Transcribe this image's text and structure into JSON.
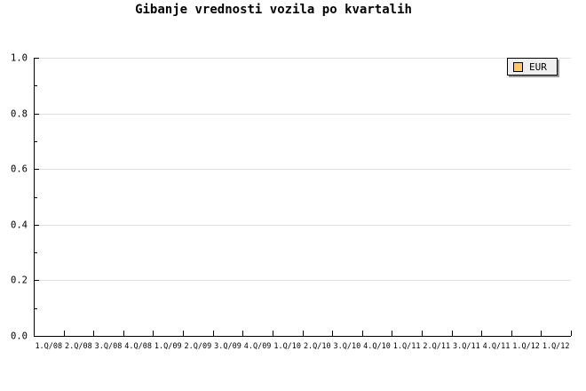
{
  "chart_data": {
    "type": "line",
    "title": "Gibanje vrednosti vozila po kvartalih",
    "categories": [
      "1.Q/08",
      "2.Q/08",
      "3.Q/08",
      "4.Q/08",
      "1.Q/09",
      "2.Q/09",
      "3.Q/09",
      "4.Q/09",
      "1.Q/10",
      "2.Q/10",
      "3.Q/10",
      "4.Q/10",
      "1.Q/11",
      "2.Q/11",
      "3.Q/11",
      "4.Q/11",
      "1.Q/12",
      "1.Q/12"
    ],
    "series": [
      {
        "name": "EUR",
        "color": "#FCC96A",
        "values": []
      }
    ],
    "xlabel": "",
    "ylabel": "",
    "ylim": [
      0.0,
      1.0
    ],
    "y_major_step": 0.2,
    "y_minor_step": 0.1,
    "y_tick_labels": [
      "0.0",
      "0.2",
      "0.4",
      "0.6",
      "0.8",
      "1.0"
    ],
    "grid": "horizontal major gridlines only",
    "legend_position": "top-right"
  },
  "style": {
    "background": "#ffffff",
    "axis_color": "#000000",
    "grid_color": "#e0e0e0",
    "text_color": "#000000",
    "legend": {
      "label": "EUR",
      "swatch_color": "#FCC96A",
      "swatch_border": "#000000",
      "background": "#efefef",
      "border_color": "#000000",
      "shadow_color": "#999999"
    }
  }
}
